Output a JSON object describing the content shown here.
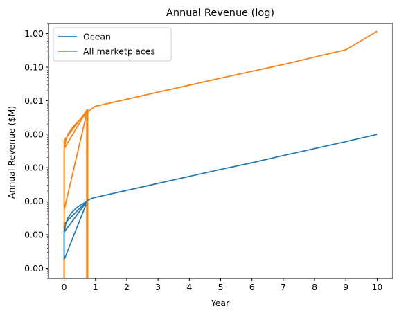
{
  "chart_data": {
    "type": "line",
    "title": "Annual Revenue (log)",
    "xlabel": "Year",
    "ylabel": "Annual Revenue ($M)",
    "yscale": "log",
    "xlim": [
      -0.5,
      10.5
    ],
    "ylim": [
      5e-08,
      2.0
    ],
    "x_ticks": [
      0,
      1,
      2,
      3,
      4,
      5,
      6,
      7,
      8,
      9,
      10
    ],
    "x_tick_labels": [
      "0",
      "1",
      "2",
      "3",
      "4",
      "5",
      "6",
      "7",
      "8",
      "9",
      "10"
    ],
    "y_ticks": [
      1e-07,
      1e-06,
      1e-05,
      0.0001,
      0.001,
      0.01,
      0.1,
      1
    ],
    "y_tick_labels": [
      "0.00",
      "0.00",
      "0.00",
      "0.00",
      "0.00",
      "0.01",
      "0.10",
      "1.00"
    ],
    "grid": false,
    "legend": "top-left",
    "series": [
      {
        "name": "Ocean",
        "color": "#1f77b4",
        "x": [
          0,
          0,
          0.05,
          0.12,
          0.25,
          0.4,
          0.55,
          0.7,
          0.75,
          0.85,
          1.0,
          2,
          3,
          4,
          5,
          6,
          7,
          8,
          9,
          10
        ],
        "y": [
          1.8e-07,
          1.2e-06,
          2.1e-06,
          3.2e-06,
          4.7e-06,
          6.4e-06,
          8e-06,
          9.5e-06,
          1.05e-05,
          1.18e-05,
          1.3e-05,
          2.1e-05,
          3.4e-05,
          5.5e-05,
          8.9e-05,
          0.00014,
          0.00023,
          0.00037,
          0.0006,
          0.00098
        ]
      },
      {
        "name": "All marketplaces",
        "color": "#ff7f0e",
        "x": [
          0,
          0,
          0.05,
          0.12,
          0.25,
          0.4,
          0.55,
          0.7,
          0.75,
          0.85,
          1.0,
          2,
          3,
          4,
          5,
          6,
          7,
          8,
          9,
          10
        ],
        "y": [
          5.5e-06,
          0.00037,
          0.00065,
          0.001,
          0.0015,
          0.0022,
          0.003,
          0.0038,
          0.0045,
          0.0055,
          0.0068,
          0.011,
          0.018,
          0.029,
          0.047,
          0.075,
          0.12,
          0.2,
          0.33,
          1.18
        ]
      }
    ],
    "extra_segments": [
      {
        "series": "Ocean",
        "x": [
          0,
          0.75
        ],
        "y": [
          1.8e-07,
          1.05e-05
        ]
      },
      {
        "series": "Ocean",
        "x": [
          0,
          0.75
        ],
        "y": [
          1.2e-06,
          1.05e-05
        ]
      },
      {
        "series": "Ocean",
        "x": [
          0,
          0.75
        ],
        "y": [
          2.1e-06,
          1.05e-05
        ]
      },
      {
        "series": "Ocean",
        "x": [
          0.0,
          0.0
        ],
        "y": [
          5e-08,
          2.1e-06
        ]
      },
      {
        "series": "All marketplaces",
        "x": [
          0,
          0.75
        ],
        "y": [
          5.5e-06,
          0.0055
        ]
      },
      {
        "series": "All marketplaces",
        "x": [
          0,
          0.75
        ],
        "y": [
          0.00037,
          0.0055
        ]
      },
      {
        "series": "All marketplaces",
        "x": [
          0,
          0.75
        ],
        "y": [
          0.00065,
          0.0055
        ]
      },
      {
        "series": "All marketplaces",
        "x": [
          0.0,
          0.0
        ],
        "y": [
          5e-08,
          0.00065
        ]
      },
      {
        "series": "All marketplaces",
        "x": [
          0.72,
          0.72
        ],
        "y": [
          5e-08,
          0.0055
        ]
      },
      {
        "series": "All marketplaces",
        "x": [
          0.75,
          0.75
        ],
        "y": [
          5e-08,
          0.0055
        ]
      }
    ]
  }
}
